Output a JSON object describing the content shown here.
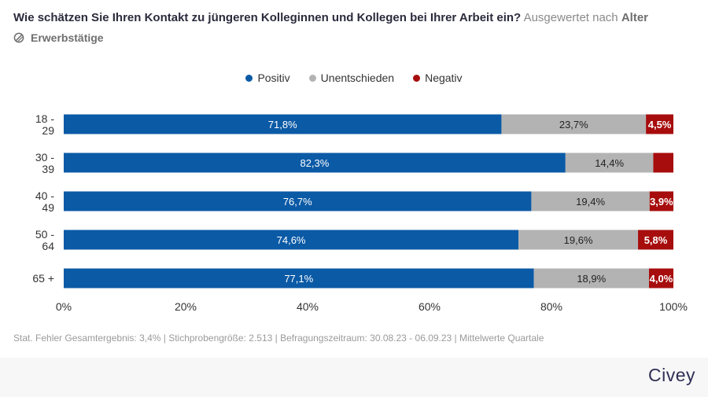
{
  "header": {
    "question": "Wie schätzen Sie Ihren Kontakt zu jüngeren Kolleginnen und Kollegen bei Ihrer Arbeit ein?",
    "by_prefix": "Ausgewertet nach",
    "dimension": "Alter",
    "filter_label": "Erwerbstätige"
  },
  "footer": {
    "footnote": "Stat. Fehler Gesamtergebnis: 3,4% | Stichprobengröße: 2.513 | Befragungszeitraum: 30.08.23 - 06.09.23 | Mittelwerte Quartale",
    "brand": "Civey"
  },
  "colors": {
    "positiv": "#0b5aa6",
    "unentschieden": "#b3b3b3",
    "negativ": "#a70d0d"
  },
  "icons": {
    "filter": "filter-icon"
  },
  "chart_data": {
    "type": "bar",
    "orientation": "horizontal",
    "stacked": true,
    "categories": [
      [
        "18 -",
        "29"
      ],
      [
        "30 -",
        "39"
      ],
      [
        "40 -",
        "49"
      ],
      [
        "50 -",
        "64"
      ],
      [
        "65 +"
      ]
    ],
    "series": [
      {
        "name": "Positiv",
        "key": "positiv",
        "values": [
          71.8,
          82.3,
          76.7,
          74.6,
          77.1
        ],
        "labels": [
          "71,8%",
          "82,3%",
          "76,7%",
          "74,6%",
          "77,1%"
        ]
      },
      {
        "name": "Unentschieden",
        "key": "unentschieden",
        "values": [
          23.7,
          14.4,
          19.4,
          19.6,
          18.9
        ],
        "labels": [
          "23,7%",
          "14,4%",
          "19,4%",
          "19,6%",
          "18,9%"
        ]
      },
      {
        "name": "Negativ",
        "key": "negativ",
        "values": [
          4.5,
          3.3,
          3.9,
          5.8,
          4.0
        ],
        "labels": [
          "4,5%",
          "",
          "3,9%",
          "5,8%",
          "4,0%"
        ]
      }
    ],
    "xlim": [
      0,
      100
    ],
    "xticks": [
      0,
      20,
      40,
      60,
      80,
      100
    ],
    "xtick_labels": [
      "0%",
      "20%",
      "40%",
      "60%",
      "80%",
      "100%"
    ],
    "legend_position": "top-center",
    "grid": false
  }
}
